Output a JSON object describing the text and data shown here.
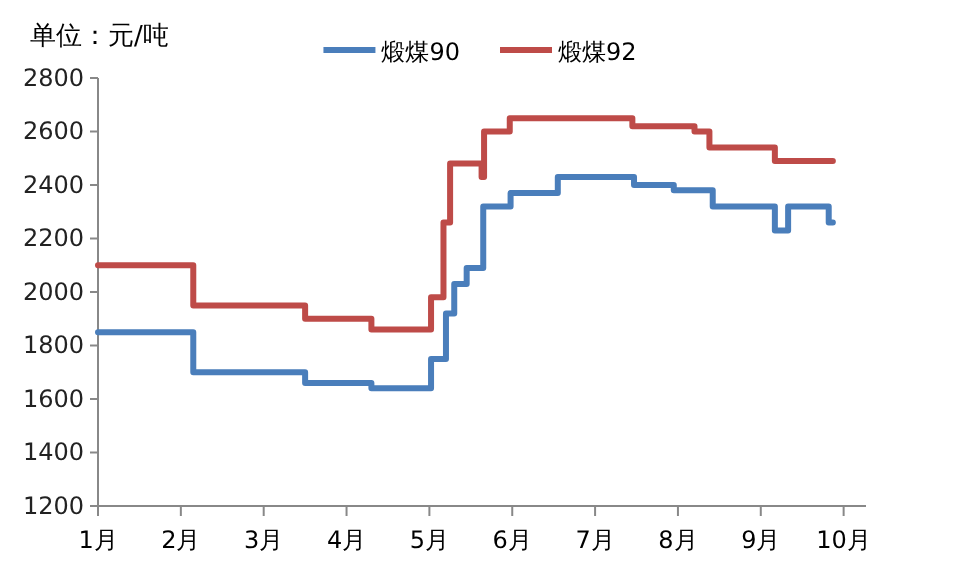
{
  "chart_data": {
    "type": "step",
    "ylabel": "单位：元/吨",
    "legend": "top",
    "xlim": [
      1,
      10.27
    ],
    "xticks": [
      {
        "value": 1,
        "label": "1月"
      },
      {
        "value": 2,
        "label": "2月"
      },
      {
        "value": 3,
        "label": "3月"
      },
      {
        "value": 4,
        "label": "4月"
      },
      {
        "value": 5,
        "label": "5月"
      },
      {
        "value": 6,
        "label": "6月"
      },
      {
        "value": 7,
        "label": "7月"
      },
      {
        "value": 8,
        "label": "8月"
      },
      {
        "value": 9,
        "label": "9月"
      },
      {
        "value": 10,
        "label": "10月"
      }
    ],
    "ylim": [
      1200,
      2800
    ],
    "yticks": [
      1200,
      1400,
      1600,
      1800,
      2000,
      2200,
      2400,
      2600,
      2800
    ],
    "grid": false,
    "series": [
      {
        "name": "煅煤90",
        "color": "#4a7ebb",
        "x": [
          1,
          2.15,
          3.5,
          4.3,
          5.02,
          5.2,
          5.3,
          5.45,
          5.65,
          5.98,
          6.55,
          7.47,
          7.95,
          8.42,
          9.17,
          9.33,
          9.82,
          9.87
        ],
        "values": [
          1850,
          1700,
          1660,
          1640,
          1750,
          1920,
          2030,
          2090,
          2320,
          2370,
          2430,
          2400,
          2380,
          2320,
          2230,
          2320,
          2260,
          2260
        ]
      },
      {
        "name": "煅煤92",
        "color": "#be4b48",
        "x": [
          1,
          2.15,
          3.5,
          4.3,
          5.02,
          5.17,
          5.25,
          5.63,
          5.66,
          5.97,
          7.45,
          8.2,
          8.38,
          9.17,
          9.87
        ],
        "values": [
          2100,
          1950,
          1900,
          1860,
          1980,
          2260,
          2480,
          2430,
          2600,
          2650,
          2620,
          2600,
          2540,
          2490,
          2490
        ]
      }
    ]
  }
}
